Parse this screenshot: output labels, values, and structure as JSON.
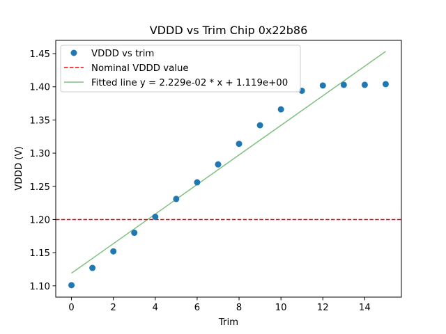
{
  "chart_data": {
    "type": "scatter",
    "title": "VDDD vs Trim Chip 0x22b86",
    "xlabel": "Trim",
    "ylabel": "VDDD (V)",
    "xlim": [
      -0.75,
      15.75
    ],
    "ylim": [
      1.083,
      1.47
    ],
    "xticks": [
      0,
      2,
      4,
      6,
      8,
      10,
      12,
      14
    ],
    "xtick_labels": [
      "0",
      "2",
      "4",
      "6",
      "8",
      "10",
      "12",
      "14"
    ],
    "yticks": [
      1.1,
      1.15,
      1.2,
      1.25,
      1.3,
      1.35,
      1.4,
      1.45
    ],
    "ytick_labels": [
      "1.10",
      "1.15",
      "1.20",
      "1.25",
      "1.30",
      "1.35",
      "1.40",
      "1.45"
    ],
    "grid": false,
    "legend_position": "top-left",
    "series": [
      {
        "name": "VDDD vs trim",
        "kind": "scatter",
        "color": "#1f77b4",
        "x": [
          0,
          1,
          2,
          3,
          4,
          5,
          6,
          7,
          8,
          9,
          10,
          11,
          12,
          13,
          14,
          15
        ],
        "y": [
          1.101,
          1.127,
          1.152,
          1.18,
          1.204,
          1.231,
          1.256,
          1.283,
          1.314,
          1.342,
          1.366,
          1.394,
          1.402,
          1.403,
          1.403,
          1.404
        ]
      },
      {
        "name": "Nominal VDDD value",
        "kind": "hline",
        "color": "#ff0000",
        "style": "dashed",
        "y": 1.2
      },
      {
        "name": "Fitted line y = 2.229e-02 * x + 1.119e+00",
        "kind": "line",
        "color": "#7fbf7f",
        "slope": 0.02229,
        "intercept": 1.119,
        "x": [
          0,
          15
        ]
      }
    ]
  }
}
